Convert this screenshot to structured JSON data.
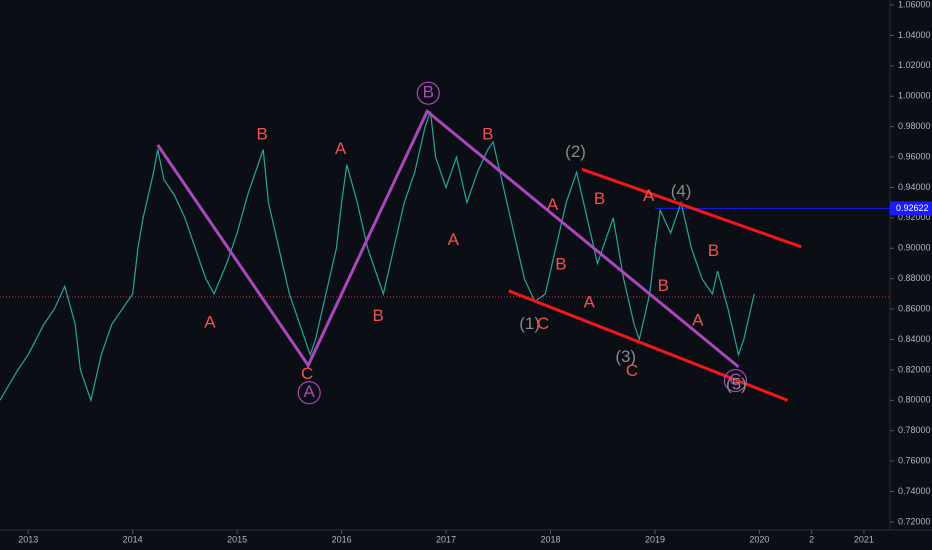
{
  "chart_data": {
    "type": "line",
    "xlim": [
      2012.73,
      2021.25
    ],
    "ylim": [
      0.7147,
      1.0633
    ],
    "xticks": [
      2013,
      2014,
      2015,
      2016,
      2017,
      2018,
      2019,
      2020,
      {
        "value": 2020.5,
        "label": "2"
      },
      2021
    ],
    "yticks": [
      {
        "value": 0.72,
        "label": "0.72000"
      },
      {
        "value": 0.74,
        "label": "0.74000"
      },
      {
        "value": 0.76,
        "label": "0.76000"
      },
      {
        "value": 0.78,
        "label": "0.78000"
      },
      {
        "value": 0.8,
        "label": "0.80000"
      },
      {
        "value": 0.82,
        "label": "0.82000"
      },
      {
        "value": 0.84,
        "label": "0.84000"
      },
      {
        "value": 0.86,
        "label": "0.86000"
      },
      {
        "value": 0.88,
        "label": "0.88000"
      },
      {
        "value": 0.9,
        "label": "0.90000"
      },
      {
        "value": 0.92,
        "label": "0.92000"
      },
      {
        "value": 0.94,
        "label": "0.94000"
      },
      {
        "value": 0.96,
        "label": "0.96000"
      },
      {
        "value": 0.98,
        "label": "0.98000"
      },
      {
        "value": 1.0,
        "label": "1.00000"
      },
      {
        "value": 1.02,
        "label": "1.02000"
      },
      {
        "value": 1.04,
        "label": "1.04000"
      },
      {
        "value": 1.06,
        "label": "1.06000"
      }
    ],
    "grid": false,
    "series": [
      {
        "color": "#26a69a",
        "x": [
          2012.73,
          2012.9,
          2013.0,
          2013.15,
          2013.25,
          2013.35,
          2013.45,
          2013.5,
          2013.6,
          2013.7,
          2013.8,
          2013.9,
          2014.0,
          2014.05,
          2014.1,
          2014.2,
          2014.24,
          2014.3,
          2014.4,
          2014.5,
          2014.6,
          2014.7,
          2014.78,
          2014.9,
          2015.0,
          2015.1,
          2015.2,
          2015.25,
          2015.3,
          2015.4,
          2015.5,
          2015.6,
          2015.7,
          2015.75,
          2015.85,
          2015.95,
          2016.0,
          2016.05,
          2016.15,
          2016.25,
          2016.35,
          2016.4,
          2016.5,
          2016.6,
          2016.7,
          2016.8,
          2016.85,
          2016.9,
          2017.0,
          2017.1,
          2017.2,
          2017.3,
          2017.4,
          2017.45,
          2017.55,
          2017.65,
          2017.75,
          2017.85,
          2017.95,
          2018.05,
          2018.15,
          2018.25,
          2018.35,
          2018.45,
          2018.55,
          2018.6,
          2018.7,
          2018.8,
          2018.85,
          2018.95,
          2019.0,
          2019.05,
          2019.15,
          2019.25,
          2019.35,
          2019.45,
          2019.55,
          2019.6,
          2019.7,
          2019.8,
          2019.85,
          2019.95
        ],
        "values": [
          0.8,
          0.82,
          0.83,
          0.85,
          0.86,
          0.875,
          0.85,
          0.82,
          0.8,
          0.83,
          0.85,
          0.86,
          0.87,
          0.9,
          0.92,
          0.95,
          0.965,
          0.945,
          0.935,
          0.92,
          0.9,
          0.88,
          0.87,
          0.89,
          0.91,
          0.935,
          0.955,
          0.965,
          0.93,
          0.9,
          0.87,
          0.85,
          0.83,
          0.84,
          0.87,
          0.9,
          0.93,
          0.955,
          0.93,
          0.9,
          0.88,
          0.87,
          0.9,
          0.93,
          0.95,
          0.98,
          0.99,
          0.96,
          0.94,
          0.96,
          0.93,
          0.95,
          0.965,
          0.97,
          0.94,
          0.91,
          0.88,
          0.865,
          0.87,
          0.9,
          0.93,
          0.95,
          0.92,
          0.89,
          0.91,
          0.92,
          0.88,
          0.85,
          0.84,
          0.87,
          0.9,
          0.925,
          0.91,
          0.93,
          0.9,
          0.88,
          0.87,
          0.885,
          0.86,
          0.83,
          0.84,
          0.87
        ]
      }
    ],
    "lines": [
      {
        "color": "#ab47bc",
        "x": [
          2014.24,
          2015.68,
          2016.82,
          2019.8
        ],
        "y": [
          0.968,
          0.823,
          0.99,
          0.822
        ]
      },
      {
        "color": "#f01818",
        "x": [
          2018.3,
          2020.4
        ],
        "y": [
          0.952,
          0.901
        ]
      },
      {
        "color": "#f01818",
        "x": [
          2017.6,
          2020.27
        ],
        "y": [
          0.872,
          0.8
        ]
      }
    ],
    "hlines": [
      {
        "color": "#1a1aff",
        "from": 2019.0,
        "value": 0.92622,
        "value_label": "0.92622"
      },
      {
        "color": "#c0392b",
        "from": 2012.73,
        "value": 0.868,
        "dotted": true
      }
    ],
    "labels": [
      {
        "text": "B",
        "x": 2015.24,
        "y": 0.9745,
        "color": "#ef5350"
      },
      {
        "text": "A",
        "x": 2014.74,
        "y": 0.851,
        "color": "#ef5350"
      },
      {
        "text": "A",
        "x": 2015.99,
        "y": 0.965,
        "color": "#ef5350"
      },
      {
        "text": "B",
        "x": 2016.35,
        "y": 0.855,
        "color": "#ef5350"
      },
      {
        "text": "C",
        "x": 2015.67,
        "y": 0.817,
        "color": "#ef5350"
      },
      {
        "text": "A",
        "x": 2015.69,
        "y": 0.805,
        "color": "#ab47bc",
        "circled": true
      },
      {
        "text": "B",
        "x": 2016.83,
        "y": 1.002,
        "color": "#ab47bc",
        "circled": true
      },
      {
        "text": "B",
        "x": 2017.4,
        "y": 0.9745,
        "color": "#ef5350"
      },
      {
        "text": "A",
        "x": 2017.07,
        "y": 0.905,
        "color": "#ef5350"
      },
      {
        "text": "A",
        "x": 2018.02,
        "y": 0.928,
        "color": "#ef5350"
      },
      {
        "text": "B",
        "x": 2018.1,
        "y": 0.889,
        "color": "#ef5350"
      },
      {
        "text": "B",
        "x": 2018.47,
        "y": 0.932,
        "color": "#ef5350"
      },
      {
        "text": "A",
        "x": 2018.37,
        "y": 0.864,
        "color": "#ef5350"
      },
      {
        "text": "C",
        "x": 2018.78,
        "y": 0.819,
        "color": "#ef5350"
      },
      {
        "text": "A",
        "x": 2018.94,
        "y": 0.934,
        "color": "#ef5350"
      },
      {
        "text": "B",
        "x": 2019.08,
        "y": 0.875,
        "color": "#ef5350"
      },
      {
        "text": "B",
        "x": 2019.56,
        "y": 0.898,
        "color": "#ef5350"
      },
      {
        "text": "A",
        "x": 2019.41,
        "y": 0.852,
        "color": "#ef5350"
      },
      {
        "text": "C",
        "x": 2019.77,
        "y": 0.813,
        "color": "#ab47bc",
        "circled": true
      },
      {
        "text": "(2)",
        "x": 2018.24,
        "y": 0.963,
        "color": "#888888"
      },
      {
        "text": "(4)",
        "x": 2019.25,
        "y": 0.937,
        "color": "#888888"
      },
      {
        "text": "(1)",
        "x": 2017.8,
        "y": 0.85,
        "color": "#888888"
      },
      {
        "text": "C",
        "x": 2017.93,
        "y": 0.85,
        "color": "#ef5350"
      },
      {
        "text": "(3)",
        "x": 2018.72,
        "y": 0.828,
        "color": "#888888"
      },
      {
        "text": "(5)",
        "x": 2019.78,
        "y": 0.81,
        "color": "#888888"
      }
    ]
  }
}
